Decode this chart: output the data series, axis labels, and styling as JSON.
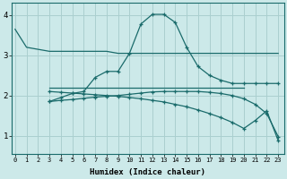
{
  "xlabel": "Humidex (Indice chaleur)",
  "bg_color": "#cce9e9",
  "grid_color": "#aacfcf",
  "line_color": "#1a6b6b",
  "x_ticks": [
    0,
    1,
    2,
    3,
    4,
    5,
    6,
    7,
    8,
    9,
    10,
    11,
    12,
    13,
    14,
    15,
    16,
    17,
    18,
    19,
    20,
    21,
    22,
    23
  ],
  "y_ticks": [
    1,
    2,
    3,
    4
  ],
  "ylim": [
    0.55,
    4.3
  ],
  "xlim": [
    -0.3,
    23.5
  ],
  "line1_x": [
    0,
    1,
    2,
    3,
    4,
    5,
    6,
    7,
    8,
    9,
    10,
    19,
    20,
    21,
    22,
    23
  ],
  "line1_y": [
    3.65,
    3.2,
    3.15,
    3.1,
    3.1,
    3.1,
    3.1,
    3.1,
    3.1,
    3.05,
    3.05,
    3.05,
    3.05,
    3.05,
    3.05,
    3.05
  ],
  "line2_x": [
    3,
    4,
    5,
    6,
    7,
    8,
    9,
    10,
    11,
    12,
    13,
    14,
    15,
    16,
    17,
    18,
    19,
    20
  ],
  "line2_y": [
    2.2,
    2.2,
    2.2,
    2.2,
    2.2,
    2.2,
    2.2,
    2.2,
    2.2,
    2.2,
    2.2,
    2.2,
    2.2,
    2.2,
    2.2,
    2.2,
    2.2,
    2.2
  ],
  "line4_x": [
    3,
    4,
    5,
    6,
    7,
    8,
    9,
    10,
    11,
    12,
    13,
    14,
    15,
    16,
    17,
    18,
    19,
    20,
    21,
    22,
    23
  ],
  "line4_y": [
    1.85,
    1.95,
    2.05,
    2.1,
    2.45,
    2.6,
    2.6,
    3.05,
    3.78,
    4.02,
    4.02,
    3.82,
    3.2,
    2.72,
    2.5,
    2.38,
    2.3,
    2.3,
    2.3,
    2.3,
    2.3
  ],
  "line3_x": [
    3,
    4,
    5,
    6,
    7,
    8,
    9,
    10,
    11,
    12,
    13,
    14,
    15,
    16,
    17,
    18,
    19,
    20,
    21,
    22,
    23
  ],
  "line3_y": [
    2.1,
    2.08,
    2.06,
    2.04,
    2.02,
    2.0,
    1.98,
    1.95,
    1.92,
    1.88,
    1.84,
    1.78,
    1.72,
    1.64,
    1.55,
    1.45,
    1.33,
    1.18,
    1.38,
    1.62,
    0.88
  ],
  "line5_x": [
    3,
    4,
    5,
    6,
    7,
    8,
    9,
    10,
    11,
    12,
    13,
    14,
    15,
    16,
    17,
    18,
    19,
    20,
    21,
    22,
    23
  ],
  "line5_y": [
    1.85,
    1.88,
    1.9,
    1.93,
    1.96,
    1.98,
    2.0,
    2.03,
    2.06,
    2.09,
    2.1,
    2.1,
    2.1,
    2.1,
    2.08,
    2.05,
    2.0,
    1.92,
    1.78,
    1.55,
    0.98
  ]
}
